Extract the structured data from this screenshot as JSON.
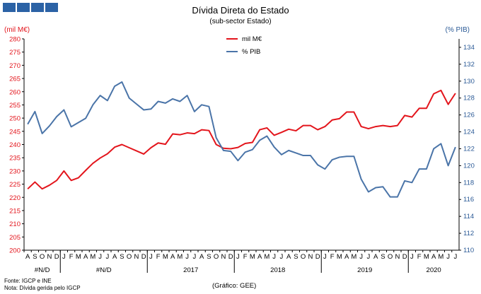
{
  "header": {
    "logo_blocks": 4,
    "logo_color": "#2b62a5"
  },
  "chart_data": {
    "type": "line",
    "title": "Dívida Direta do Estado",
    "subtitle": "(sub-sector Estado)",
    "ylabel_left": "(mil M€)",
    "ylabel_right": "(% PIB)",
    "ylim_left": [
      200,
      280
    ],
    "ylim_right": [
      110,
      135
    ],
    "yticks_left": [
      "200",
      "205",
      "210",
      "215",
      "220",
      "225",
      "230",
      "235",
      "240",
      "245",
      "250",
      "255",
      "260",
      "265",
      "270",
      "275",
      "280"
    ],
    "yticks_right": [
      "110",
      "112",
      "114",
      "116",
      "118",
      "120",
      "122",
      "124",
      "126",
      "128",
      "130",
      "132",
      "134"
    ],
    "months": [
      "A",
      "S",
      "O",
      "N",
      "D",
      "J",
      "F",
      "M",
      "A",
      "M",
      "J",
      "J",
      "A",
      "S",
      "O",
      "N",
      "D",
      "J",
      "F",
      "M",
      "A",
      "M",
      "J",
      "J",
      "A",
      "S",
      "O",
      "N",
      "D",
      "J",
      "F",
      "M",
      "A",
      "M",
      "J",
      "J",
      "A",
      "S",
      "O",
      "N",
      "D",
      "J",
      "F",
      "M",
      "A",
      "M",
      "J",
      "J",
      "A",
      "S",
      "O",
      "N",
      "D",
      "J",
      "F",
      "M",
      "A",
      "M",
      "J",
      "J"
    ],
    "year_labels": [
      "#N/D",
      "#N/D",
      "2017",
      "2018",
      "2019",
      "2020"
    ],
    "legend_position": "top-center",
    "series": [
      {
        "name": "mil M€",
        "color": "#e3151c",
        "axis": "left",
        "values": [
          223.2,
          225.8,
          223.2,
          224.6,
          226.4,
          230.0,
          226.4,
          227.4,
          230.2,
          232.9,
          234.9,
          236.5,
          239.0,
          240.0,
          238.8,
          237.6,
          236.4,
          238.8,
          240.6,
          240.1,
          244.0,
          243.7,
          244.4,
          244.1,
          245.6,
          245.3,
          240.0,
          238.6,
          238.4,
          238.9,
          240.4,
          240.8,
          245.6,
          246.3,
          243.5,
          244.6,
          245.8,
          245.2,
          247.2,
          247.2,
          245.6,
          246.8,
          249.3,
          249.8,
          252.3,
          252.3,
          246.8,
          246.0,
          246.8,
          247.2,
          246.8,
          247.2,
          251.0,
          250.4,
          253.7,
          253.7,
          259.2,
          260.5,
          255.2,
          259.4
        ]
      },
      {
        "name": "% PIB",
        "color": "#4a74a8",
        "axis": "right",
        "values": [
          124.9,
          126.4,
          123.8,
          124.7,
          125.8,
          126.6,
          124.6,
          125.1,
          125.6,
          127.2,
          128.3,
          127.7,
          129.4,
          129.9,
          128.0,
          127.3,
          126.6,
          126.7,
          127.6,
          127.4,
          127.9,
          127.6,
          128.3,
          126.4,
          127.2,
          127.0,
          123.3,
          121.8,
          121.7,
          120.6,
          121.6,
          121.9,
          123.0,
          123.5,
          122.2,
          121.3,
          121.8,
          121.5,
          121.2,
          121.2,
          120.1,
          119.6,
          120.7,
          121.0,
          121.1,
          121.1,
          118.4,
          116.9,
          117.4,
          117.5,
          116.3,
          116.3,
          118.2,
          118.0,
          119.6,
          119.6,
          122.0,
          122.6,
          120.0,
          122.2
        ]
      }
    ]
  },
  "footer": {
    "source": "Fonte: IGCP e INE",
    "note": "Nota: Dívida gerida pelo IGCP",
    "credit": "(Gráfico:  GEE)"
  }
}
